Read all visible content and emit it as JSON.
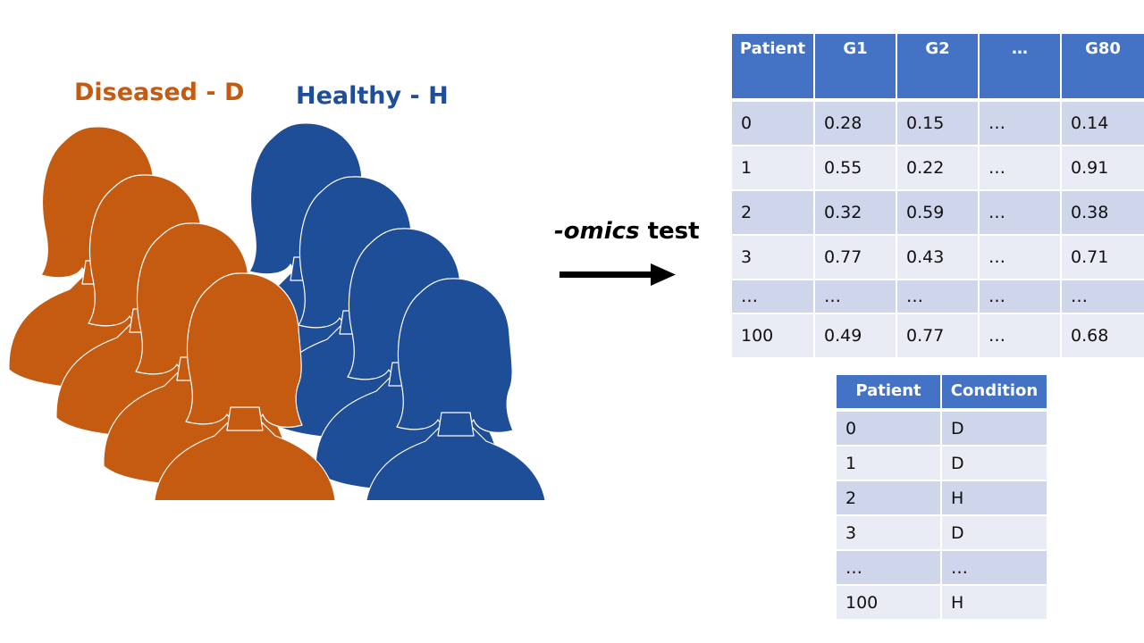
{
  "groups": {
    "diseased": {
      "label": "Diseased - D",
      "color": "#c55a11"
    },
    "healthy": {
      "label": "Healthy - H",
      "color": "#1f4e99"
    }
  },
  "process": {
    "prefix": "-omics",
    "suffix": " test"
  },
  "gene_table": {
    "headers": [
      "Patient",
      "G1",
      "G2",
      "…",
      "G80"
    ],
    "rows": [
      [
        "0",
        "0.28",
        "0.15",
        "…",
        "0.14"
      ],
      [
        "1",
        "0.55",
        "0.22",
        "…",
        "0.91"
      ],
      [
        "2",
        "0.32",
        "0.59",
        "…",
        "0.38"
      ],
      [
        "3",
        "0.77",
        "0.43",
        "…",
        "0.71"
      ],
      [
        "…",
        "…",
        "…",
        "…",
        "…"
      ],
      [
        "100",
        "0.49",
        "0.77",
        "…",
        "0.68"
      ]
    ]
  },
  "condition_table": {
    "headers": [
      "Patient",
      "Condition"
    ],
    "rows": [
      [
        "0",
        "D"
      ],
      [
        "1",
        "D"
      ],
      [
        "2",
        "H"
      ],
      [
        "3",
        "D"
      ],
      [
        "…",
        "…"
      ],
      [
        "100",
        "H"
      ]
    ]
  }
}
